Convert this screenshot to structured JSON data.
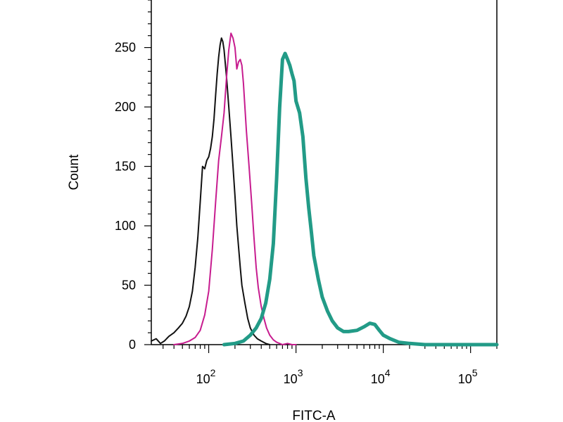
{
  "chart_data": {
    "type": "line",
    "title": "",
    "xlabel": "FITC-A",
    "ylabel": "Count",
    "x_scale": "log",
    "xlim": [
      22,
      200000
    ],
    "ylim": [
      0,
      290
    ],
    "x_ticks": [
      {
        "value": 100,
        "base": "10",
        "exp": "2"
      },
      {
        "value": 1000,
        "base": "10",
        "exp": "3"
      },
      {
        "value": 10000,
        "base": "10",
        "exp": "4"
      },
      {
        "value": 100000,
        "base": "10",
        "exp": "5"
      }
    ],
    "y_ticks": [
      0,
      50,
      100,
      150,
      200,
      250
    ],
    "grid": false,
    "legend": "none",
    "series": [
      {
        "color": "#111111",
        "width": 2,
        "points": [
          [
            22,
            3
          ],
          [
            25,
            5
          ],
          [
            28,
            1
          ],
          [
            31,
            3
          ],
          [
            35,
            7
          ],
          [
            40,
            10
          ],
          [
            45,
            14
          ],
          [
            50,
            18
          ],
          [
            55,
            24
          ],
          [
            60,
            32
          ],
          [
            65,
            45
          ],
          [
            70,
            65
          ],
          [
            75,
            90
          ],
          [
            80,
            120
          ],
          [
            85,
            150
          ],
          [
            90,
            148
          ],
          [
            95,
            155
          ],
          [
            100,
            158
          ],
          [
            105,
            165
          ],
          [
            110,
            175
          ],
          [
            115,
            190
          ],
          [
            120,
            210
          ],
          [
            125,
            228
          ],
          [
            130,
            242
          ],
          [
            135,
            252
          ],
          [
            140,
            258
          ],
          [
            145,
            255
          ],
          [
            150,
            248
          ],
          [
            160,
            225
          ],
          [
            170,
            200
          ],
          [
            180,
            175
          ],
          [
            190,
            150
          ],
          [
            200,
            125
          ],
          [
            210,
            100
          ],
          [
            220,
            82
          ],
          [
            230,
            65
          ],
          [
            240,
            50
          ],
          [
            260,
            35
          ],
          [
            280,
            22
          ],
          [
            300,
            14
          ],
          [
            330,
            8
          ],
          [
            360,
            5
          ],
          [
            400,
            3
          ],
          [
            450,
            1
          ],
          [
            500,
            0
          ]
        ]
      },
      {
        "color": "#c71c8f",
        "width": 2,
        "points": [
          [
            40,
            0
          ],
          [
            50,
            1
          ],
          [
            60,
            3
          ],
          [
            70,
            6
          ],
          [
            80,
            12
          ],
          [
            90,
            25
          ],
          [
            100,
            45
          ],
          [
            110,
            80
          ],
          [
            120,
            120
          ],
          [
            130,
            155
          ],
          [
            140,
            175
          ],
          [
            150,
            195
          ],
          [
            160,
            225
          ],
          [
            170,
            248
          ],
          [
            180,
            262
          ],
          [
            190,
            258
          ],
          [
            200,
            250
          ],
          [
            210,
            232
          ],
          [
            220,
            238
          ],
          [
            230,
            240
          ],
          [
            240,
            235
          ],
          [
            250,
            220
          ],
          [
            270,
            180
          ],
          [
            290,
            150
          ],
          [
            310,
            120
          ],
          [
            330,
            90
          ],
          [
            350,
            65
          ],
          [
            370,
            48
          ],
          [
            400,
            32
          ],
          [
            430,
            22
          ],
          [
            460,
            14
          ],
          [
            500,
            8
          ],
          [
            550,
            4
          ],
          [
            600,
            2
          ],
          [
            700,
            0
          ],
          [
            800,
            1
          ],
          [
            900,
            0
          ],
          [
            1000,
            0
          ]
        ]
      },
      {
        "color": "#229b87",
        "width": 5,
        "points": [
          [
            150,
            0
          ],
          [
            200,
            1
          ],
          [
            250,
            3
          ],
          [
            300,
            8
          ],
          [
            350,
            14
          ],
          [
            400,
            22
          ],
          [
            450,
            35
          ],
          [
            500,
            55
          ],
          [
            550,
            85
          ],
          [
            600,
            140
          ],
          [
            650,
            200
          ],
          [
            700,
            240
          ],
          [
            750,
            245
          ],
          [
            800,
            240
          ],
          [
            850,
            235
          ],
          [
            900,
            228
          ],
          [
            950,
            222
          ],
          [
            1000,
            205
          ],
          [
            1100,
            195
          ],
          [
            1200,
            175
          ],
          [
            1300,
            140
          ],
          [
            1400,
            115
          ],
          [
            1500,
            95
          ],
          [
            1600,
            75
          ],
          [
            1800,
            55
          ],
          [
            2000,
            40
          ],
          [
            2300,
            28
          ],
          [
            2600,
            20
          ],
          [
            3000,
            14
          ],
          [
            3500,
            11
          ],
          [
            4000,
            11
          ],
          [
            5000,
            12
          ],
          [
            6000,
            15
          ],
          [
            7000,
            18
          ],
          [
            8000,
            17
          ],
          [
            9000,
            12
          ],
          [
            10000,
            8
          ],
          [
            12000,
            5
          ],
          [
            15000,
            2
          ],
          [
            20000,
            1
          ],
          [
            30000,
            0
          ],
          [
            50000,
            0
          ],
          [
            100000,
            0
          ],
          [
            200000,
            0
          ]
        ]
      }
    ]
  }
}
